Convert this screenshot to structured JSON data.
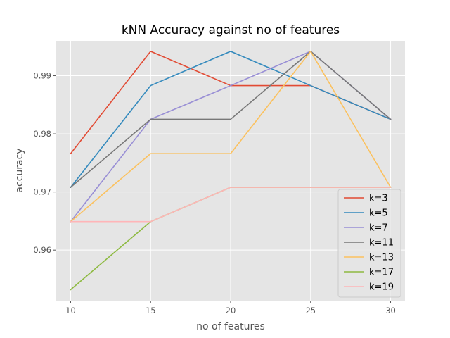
{
  "chart_data": {
    "type": "line",
    "title": "kNN Accuracy against no of features",
    "xlabel": "no of features",
    "ylabel": "accuracy",
    "x": [
      10,
      15,
      20,
      25,
      30
    ],
    "x_ticks": [
      "10",
      "15",
      "20",
      "25",
      "30"
    ],
    "y_ticks": [
      "0.96",
      "0.97",
      "0.98",
      "0.99"
    ],
    "y_tick_values": [
      0.96,
      0.97,
      0.98,
      0.99
    ],
    "xlim": [
      9.1,
      30.9
    ],
    "ylim": [
      0.9513,
      0.996
    ],
    "grid": true,
    "legend_position": "lower-right",
    "series": [
      {
        "name": "k=3",
        "color": "#E24A33",
        "values": [
          0.9766,
          0.9942,
          0.9883,
          0.9883,
          0.9825
        ]
      },
      {
        "name": "k=5",
        "color": "#348ABD",
        "values": [
          0.9708,
          0.9883,
          0.9942,
          0.9883,
          0.9825
        ]
      },
      {
        "name": "k=7",
        "color": "#988ED5",
        "values": [
          0.9649,
          0.9825,
          0.9883,
          0.9942,
          0.9825
        ]
      },
      {
        "name": "k=11",
        "color": "#777777",
        "values": [
          0.9708,
          0.9825,
          0.9825,
          0.9942,
          0.9825
        ]
      },
      {
        "name": "k=13",
        "color": "#FBC15E",
        "values": [
          0.9649,
          0.9766,
          0.9766,
          0.9942,
          0.9708
        ]
      },
      {
        "name": "k=17",
        "color": "#8EBA42",
        "values": [
          0.9532,
          0.9649,
          0.9708,
          0.9708,
          0.9708
        ]
      },
      {
        "name": "k=19",
        "color": "#FFB5B8",
        "values": [
          0.9649,
          0.9649,
          0.9708,
          0.9708,
          0.9708
        ]
      }
    ]
  }
}
